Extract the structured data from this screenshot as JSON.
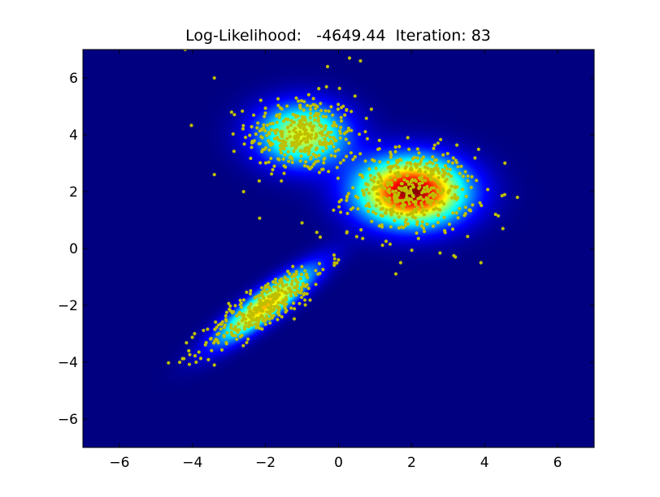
{
  "chart_data": {
    "type": "scatter",
    "title": "Log-Likelihood:   -4649.44  Iteration: 83",
    "xlabel": "",
    "ylabel": "",
    "xlim": [
      -7,
      7
    ],
    "ylim": [
      -7,
      7
    ],
    "xticks": [
      -6,
      -4,
      -2,
      0,
      2,
      4,
      6
    ],
    "yticks": [
      -6,
      -4,
      -2,
      0,
      2,
      4,
      6
    ],
    "xtick_labels": [
      "−6",
      "−4",
      "−2",
      "0",
      "2",
      "4",
      "6"
    ],
    "ytick_labels": [
      "−6",
      "−4",
      "−2",
      "0",
      "2",
      "4",
      "6"
    ],
    "grid": false,
    "legend": "none",
    "colormap": "jet",
    "background_color": "#00007f",
    "point_color": "#bfbf00",
    "density_components": [
      {
        "mean": [
          -1.0,
          4.0
        ],
        "sd": [
          0.85,
          0.75
        ],
        "corr": 0.0,
        "peak": 0.6
      },
      {
        "mean": [
          2.0,
          2.0
        ],
        "sd": [
          1.0,
          0.8
        ],
        "corr": 0.0,
        "peak": 1.0
      },
      {
        "mean": [
          -2.0,
          -2.0
        ],
        "sd": [
          0.9,
          0.9
        ],
        "corr": 0.88,
        "peak": 0.7
      }
    ],
    "clusters": [
      {
        "center": [
          -1.0,
          4.0
        ],
        "sd": [
          0.75,
          0.7
        ],
        "corr": 0.0,
        "n": 350
      },
      {
        "center": [
          2.0,
          2.0
        ],
        "sd": [
          0.85,
          0.75
        ],
        "corr": 0.0,
        "n": 450
      },
      {
        "center": [
          -2.0,
          -2.0
        ],
        "sd": [
          0.85,
          0.8
        ],
        "corr": 0.85,
        "n": 350
      }
    ],
    "outliers": [
      [
        -3.4,
        6.0
      ],
      [
        0.3,
        6.7
      ],
      [
        0.6,
        6.6
      ],
      [
        -0.3,
        6.4
      ],
      [
        -4.2,
        7.0
      ],
      [
        4.9,
        1.8
      ],
      [
        4.5,
        0.7
      ],
      [
        3.9,
        -0.5
      ],
      [
        1.7,
        -0.5
      ],
      [
        3.2,
        -0.3
      ],
      [
        -4.1,
        -3.6
      ],
      [
        -3.9,
        -4.0
      ],
      [
        -3.4,
        -4.1
      ],
      [
        0.0,
        -0.4
      ],
      [
        -0.5,
        0.4
      ],
      [
        -1.0,
        0.9
      ],
      [
        0.9,
        4.9
      ],
      [
        4.3,
        1.2
      ],
      [
        -3.4,
        2.6
      ],
      [
        -2.6,
        2.0
      ]
    ]
  }
}
